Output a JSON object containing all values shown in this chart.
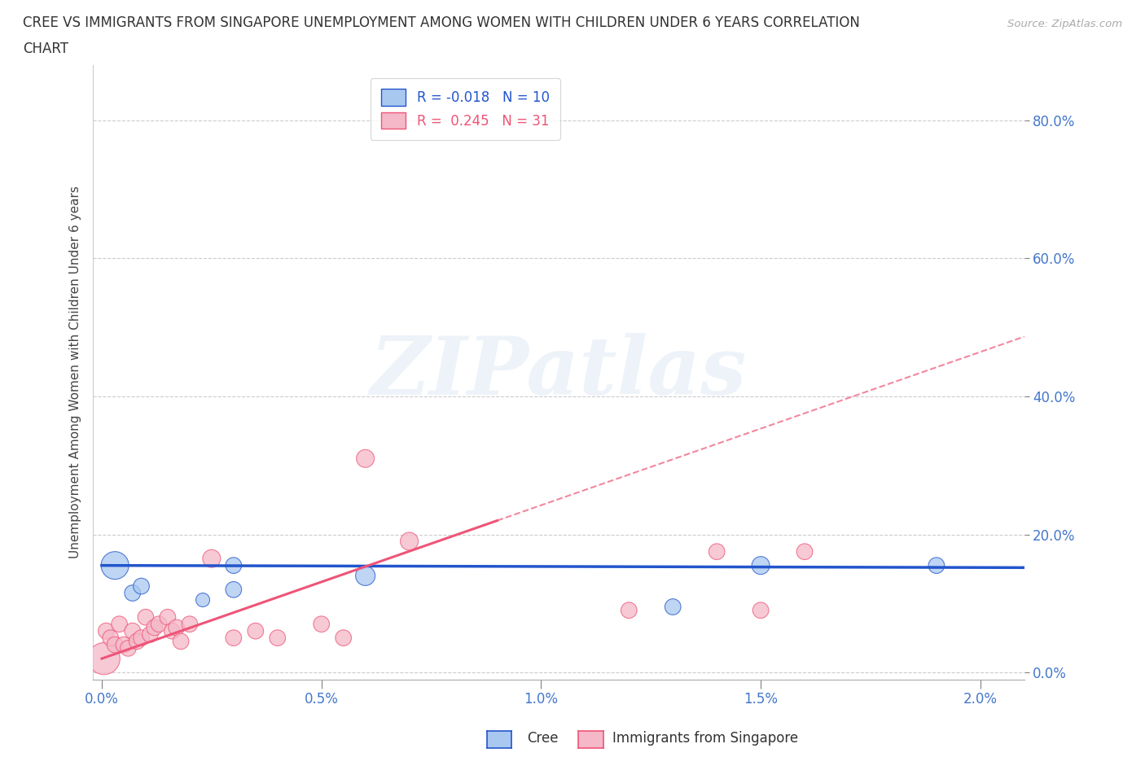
{
  "title_line1": "CREE VS IMMIGRANTS FROM SINGAPORE UNEMPLOYMENT AMONG WOMEN WITH CHILDREN UNDER 6 YEARS CORRELATION",
  "title_line2": "CHART",
  "source": "Source: ZipAtlas.com",
  "ylabel": "Unemployment Among Women with Children Under 6 years",
  "watermark": "ZIPatlas",
  "xlim": [
    -0.0002,
    0.021
  ],
  "ylim": [
    -0.01,
    0.88
  ],
  "xticks": [
    0.0,
    0.005,
    0.01,
    0.015,
    0.02
  ],
  "yticks": [
    0.0,
    0.2,
    0.4,
    0.6,
    0.8
  ],
  "ytick_labels": [
    "0.0%",
    "20.0%",
    "40.0%",
    "60.0%",
    "80.0%"
  ],
  "xtick_labels": [
    "0.0%",
    "0.5%",
    "1.0%",
    "1.5%",
    "2.0%"
  ],
  "legend_R_cree": "-0.018",
  "legend_N_cree": "10",
  "legend_R_sing": "0.245",
  "legend_N_sing": "31",
  "cree_color": "#a8c8f0",
  "sing_color": "#f4b8c8",
  "trendline_cree_color": "#2255cc",
  "trendline_sing_color": "#ee5577",
  "background_color": "#ffffff",
  "cree_points": [
    [
      0.0003,
      0.155
    ],
    [
      0.0007,
      0.115
    ],
    [
      0.0009,
      0.125
    ],
    [
      0.0023,
      0.105
    ],
    [
      0.003,
      0.12
    ],
    [
      0.003,
      0.155
    ],
    [
      0.006,
      0.14
    ],
    [
      0.013,
      0.095
    ],
    [
      0.015,
      0.155
    ],
    [
      0.019,
      0.155
    ]
  ],
  "cree_sizes": [
    600,
    200,
    200,
    150,
    200,
    200,
    300,
    200,
    250,
    200
  ],
  "sing_points": [
    [
      5e-05,
      0.02
    ],
    [
      0.0001,
      0.06
    ],
    [
      0.0002,
      0.05
    ],
    [
      0.0003,
      0.04
    ],
    [
      0.0004,
      0.07
    ],
    [
      0.0005,
      0.04
    ],
    [
      0.0006,
      0.035
    ],
    [
      0.0007,
      0.06
    ],
    [
      0.0008,
      0.045
    ],
    [
      0.0009,
      0.05
    ],
    [
      0.001,
      0.08
    ],
    [
      0.0011,
      0.055
    ],
    [
      0.0012,
      0.065
    ],
    [
      0.0013,
      0.07
    ],
    [
      0.0015,
      0.08
    ],
    [
      0.0016,
      0.06
    ],
    [
      0.0017,
      0.065
    ],
    [
      0.0018,
      0.045
    ],
    [
      0.002,
      0.07
    ],
    [
      0.0025,
      0.165
    ],
    [
      0.003,
      0.05
    ],
    [
      0.0035,
      0.06
    ],
    [
      0.004,
      0.05
    ],
    [
      0.005,
      0.07
    ],
    [
      0.0055,
      0.05
    ],
    [
      0.006,
      0.31
    ],
    [
      0.007,
      0.19
    ],
    [
      0.012,
      0.09
    ],
    [
      0.014,
      0.175
    ],
    [
      0.015,
      0.09
    ],
    [
      0.016,
      0.175
    ]
  ],
  "sing_sizes": [
    800,
    200,
    200,
    200,
    200,
    200,
    200,
    200,
    200,
    200,
    200,
    200,
    200,
    200,
    200,
    200,
    200,
    200,
    200,
    250,
    200,
    200,
    200,
    200,
    200,
    250,
    250,
    200,
    200,
    200,
    200
  ],
  "cree_trend_y0": 0.155,
  "cree_trend_y1": 0.152,
  "sing_trend_x_solid_end": 0.009,
  "sing_trend_y0": 0.02,
  "sing_trend_y1_solid": 0.22,
  "sing_trend_y1_dashed": 0.27
}
